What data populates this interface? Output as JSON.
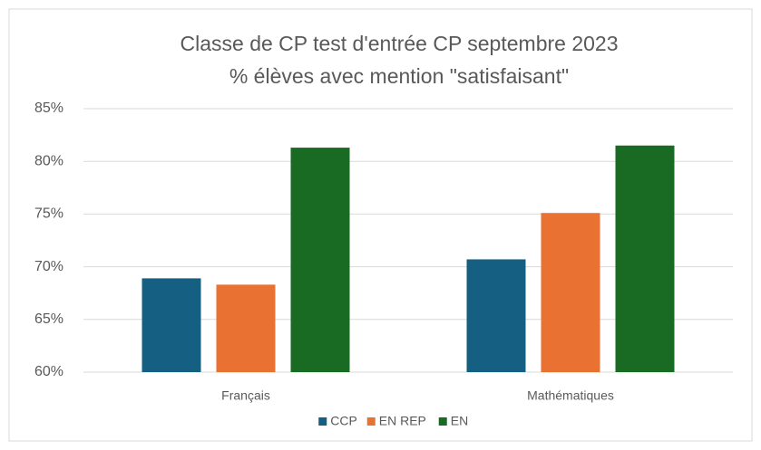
{
  "chart_data": {
    "type": "bar",
    "title": [
      "Classe de CP test d'entrée CP septembre 2023",
      "% élèves avec mention \"satisfaisant\""
    ],
    "categories": [
      "Français",
      "Mathématiques"
    ],
    "series": [
      {
        "name": "CCP",
        "color": "#156082",
        "values": [
          68.9,
          70.7
        ]
      },
      {
        "name": "EN REP",
        "color": "#e97132",
        "values": [
          68.3,
          75.1
        ]
      },
      {
        "name": "EN",
        "color": "#196b24",
        "values": [
          81.3,
          81.5
        ]
      }
    ],
    "ylim": [
      60,
      85
    ],
    "yticks": [
      {
        "value": 60,
        "label": "60%"
      },
      {
        "value": 65,
        "label": "65%"
      },
      {
        "value": 70,
        "label": "70%"
      },
      {
        "value": 75,
        "label": "75%"
      },
      {
        "value": 80,
        "label": "80%"
      },
      {
        "value": 85,
        "label": "85%"
      }
    ],
    "grid": true,
    "legend": "bottom"
  }
}
